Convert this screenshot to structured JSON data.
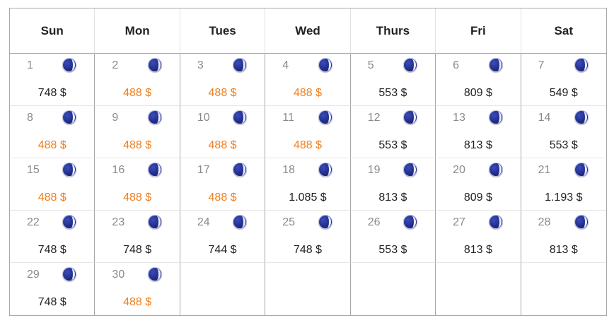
{
  "headers": [
    "Sun",
    "Mon",
    "Tues",
    "Wed",
    "Thurs",
    "Fri",
    "Sat"
  ],
  "weeks": [
    [
      {
        "day": "1",
        "price": "748 $",
        "cheap": false
      },
      {
        "day": "2",
        "price": "488 $",
        "cheap": true
      },
      {
        "day": "3",
        "price": "488 $",
        "cheap": true
      },
      {
        "day": "4",
        "price": "488 $",
        "cheap": true
      },
      {
        "day": "5",
        "price": "553 $",
        "cheap": false
      },
      {
        "day": "6",
        "price": "809 $",
        "cheap": false
      },
      {
        "day": "7",
        "price": "549 $",
        "cheap": false
      }
    ],
    [
      {
        "day": "8",
        "price": "488 $",
        "cheap": true
      },
      {
        "day": "9",
        "price": "488 $",
        "cheap": true
      },
      {
        "day": "10",
        "price": "488 $",
        "cheap": true
      },
      {
        "day": "11",
        "price": "488 $",
        "cheap": true
      },
      {
        "day": "12",
        "price": "553 $",
        "cheap": false
      },
      {
        "day": "13",
        "price": "813 $",
        "cheap": false
      },
      {
        "day": "14",
        "price": "553 $",
        "cheap": false
      }
    ],
    [
      {
        "day": "15",
        "price": "488 $",
        "cheap": true
      },
      {
        "day": "16",
        "price": "488 $",
        "cheap": true
      },
      {
        "day": "17",
        "price": "488 $",
        "cheap": true
      },
      {
        "day": "18",
        "price": "1.085 $",
        "cheap": false
      },
      {
        "day": "19",
        "price": "813 $",
        "cheap": false
      },
      {
        "day": "20",
        "price": "809 $",
        "cheap": false
      },
      {
        "day": "21",
        "price": "1.193 $",
        "cheap": false
      }
    ],
    [
      {
        "day": "22",
        "price": "748 $",
        "cheap": false
      },
      {
        "day": "23",
        "price": "748 $",
        "cheap": false
      },
      {
        "day": "24",
        "price": "744 $",
        "cheap": false
      },
      {
        "day": "25",
        "price": "748 $",
        "cheap": false
      },
      {
        "day": "26",
        "price": "553 $",
        "cheap": false
      },
      {
        "day": "27",
        "price": "813 $",
        "cheap": false
      },
      {
        "day": "28",
        "price": "813 $",
        "cheap": false
      }
    ],
    [
      {
        "day": "29",
        "price": "748 $",
        "cheap": false
      },
      {
        "day": "30",
        "price": "488 $",
        "cheap": true
      },
      null,
      null,
      null,
      null,
      null
    ]
  ],
  "icon": "moon-night-icon",
  "colors": {
    "cheap_price": "#f07f1e",
    "regular_price": "#222222",
    "day_number": "#8a8a8a",
    "moon": "#1e2a85"
  }
}
